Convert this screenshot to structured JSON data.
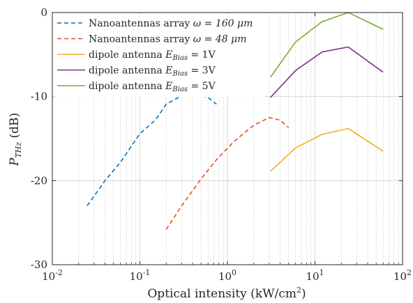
{
  "chart_data": {
    "type": "line",
    "xscale": "log",
    "xlim": [
      0.01,
      100
    ],
    "ylim": [
      -30,
      0
    ],
    "xlabel": "Optical intensity (kW/cm²)",
    "ylabel": "P_THz (dB)",
    "grid": true,
    "legend_position": "top-left",
    "x_ticks": [
      {
        "value": 0.01,
        "base": "10",
        "exp": "-2"
      },
      {
        "value": 0.1,
        "base": "10",
        "exp": "-1"
      },
      {
        "value": 1,
        "base": "10",
        "exp": "0"
      },
      {
        "value": 10,
        "base": "10",
        "exp": "1"
      },
      {
        "value": 100,
        "base": "10",
        "exp": "2"
      }
    ],
    "y_ticks": [
      {
        "value": 0,
        "label": "0"
      },
      {
        "value": -10,
        "label": "-10"
      },
      {
        "value": -20,
        "label": "-20"
      },
      {
        "value": -30,
        "label": "-30"
      }
    ],
    "series": [
      {
        "name": "Nanoantennas array ω = 160 μm",
        "color": "#0072BD",
        "style": "dashed",
        "x": [
          0.025,
          0.04,
          0.06,
          0.1,
          0.15,
          0.2,
          0.3,
          0.45,
          0.6,
          0.75
        ],
        "y": [
          -23.0,
          -20.0,
          -17.8,
          -14.4,
          -12.8,
          -10.9,
          -9.9,
          -9.7,
          -10.1,
          -10.9
        ]
      },
      {
        "name": "Nanoantennas array ω = 48 μm",
        "color": "#D95319",
        "style": "dashed",
        "x": [
          0.2,
          0.3,
          0.5,
          0.75,
          1.2,
          2.0,
          3.0,
          4.0,
          5.0
        ],
        "y": [
          -25.8,
          -23.0,
          -19.8,
          -17.5,
          -15.3,
          -13.4,
          -12.5,
          -12.8,
          -13.7
        ]
      },
      {
        "name": "dipole antenna E_Bias = 1V",
        "color": "#EDB120",
        "style": "solid",
        "x": [
          3.1,
          6.0,
          12.0,
          24.0,
          60.0
        ],
        "y": [
          -18.9,
          -16.1,
          -14.5,
          -13.8,
          -16.5
        ]
      },
      {
        "name": "dipole antenna E_Bias = 3V",
        "color": "#7E2F8E",
        "style": "solid",
        "x": [
          3.1,
          6.0,
          12.0,
          24.0,
          60.0
        ],
        "y": [
          -10.1,
          -6.9,
          -4.7,
          -4.1,
          -7.1
        ]
      },
      {
        "name": "dipole antenna E_Bias = 5V",
        "color": "#77AC30",
        "style": "solid",
        "x": [
          3.1,
          6.0,
          12.0,
          24.0,
          60.0
        ],
        "y": [
          -7.7,
          -3.5,
          -1.1,
          0.0,
          -2.0
        ]
      }
    ],
    "legend": [
      {
        "text": "Nanoantennas array ",
        "math": "ω = 160 μm"
      },
      {
        "text": "Nanoantennas array ",
        "math": "ω = 48 μm"
      },
      {
        "text": "dipole antenna ",
        "math": "E",
        "sub": "Bias",
        "rest": " = 1V"
      },
      {
        "text": "dipole antenna ",
        "math": "E",
        "sub": "Bias",
        "rest": " = 3V"
      },
      {
        "text": "dipole antenna ",
        "math": "E",
        "sub": "Bias",
        "rest": " = 5V"
      }
    ]
  }
}
